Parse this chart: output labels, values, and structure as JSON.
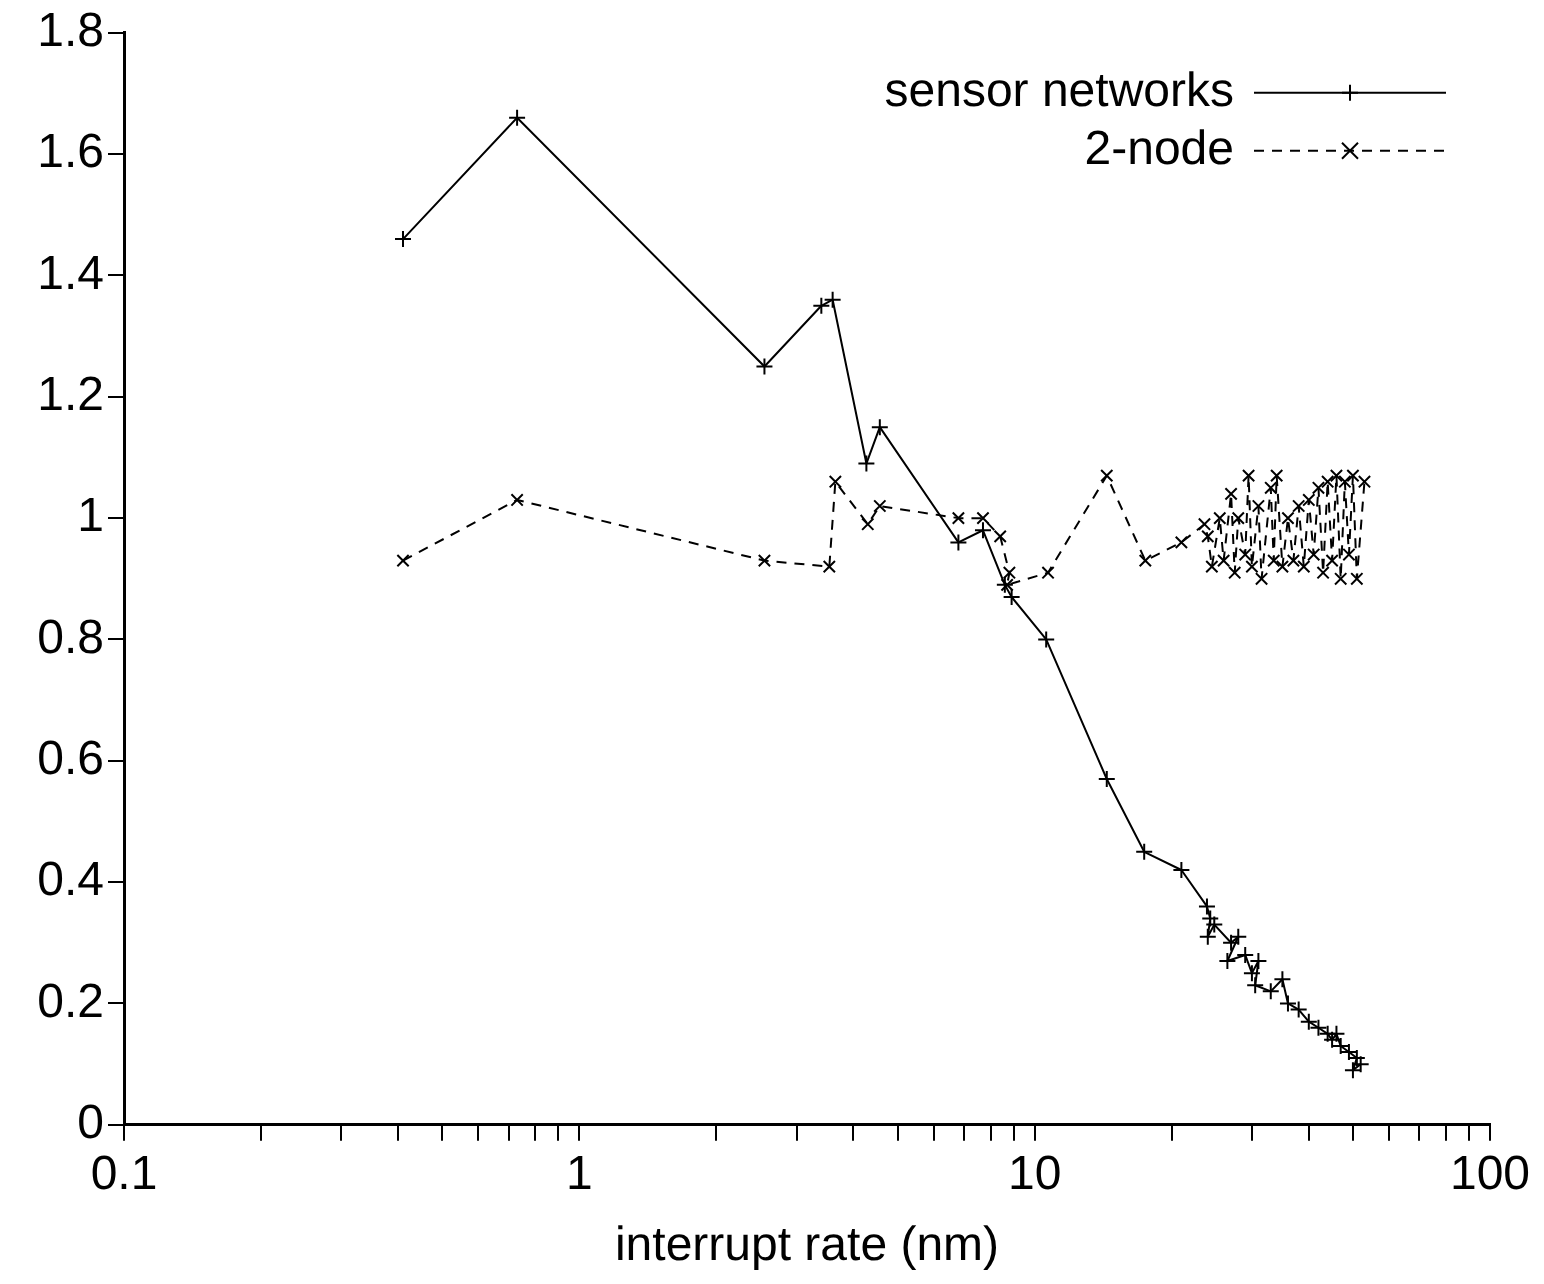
{
  "chart_data": {
    "type": "line",
    "xlabel": "interrupt rate (nm)",
    "log": "x",
    "grid": false,
    "legend": "top right",
    "xlim": [
      0.1,
      100
    ],
    "xticks": [
      0.1,
      {
        "value": 0.2,
        "label": null
      },
      {
        "value": 0.3,
        "label": null
      },
      {
        "value": 0.4,
        "label": null
      },
      {
        "value": 0.5,
        "label": null
      },
      {
        "value": 0.6,
        "label": null
      },
      {
        "value": 0.7,
        "label": null
      },
      {
        "value": 0.8,
        "label": null
      },
      {
        "value": 0.9,
        "label": null
      },
      1,
      {
        "value": 2,
        "label": null
      },
      {
        "value": 3,
        "label": null
      },
      {
        "value": 4,
        "label": null
      },
      {
        "value": 5,
        "label": null
      },
      {
        "value": 6,
        "label": null
      },
      {
        "value": 7,
        "label": null
      },
      {
        "value": 8,
        "label": null
      },
      {
        "value": 9,
        "label": null
      },
      10,
      {
        "value": 20,
        "label": null
      },
      {
        "value": 30,
        "label": null
      },
      {
        "value": 40,
        "label": null
      },
      {
        "value": 50,
        "label": null
      },
      {
        "value": 60,
        "label": null
      },
      {
        "value": 70,
        "label": null
      },
      {
        "value": 80,
        "label": null
      },
      {
        "value": 90,
        "label": null
      },
      100
    ],
    "ylim": [
      0,
      1.8
    ],
    "yticks": [
      0,
      0.2,
      0.4,
      0.6,
      0.8,
      1,
      1.2,
      1.4,
      1.6,
      1.8
    ],
    "series": [
      {
        "name": "sensor networks",
        "color": "#000000",
        "marker": "cross",
        "line_style": "solid",
        "x": [
          0.41,
          0.73,
          2.55,
          3.4,
          3.6,
          4.27,
          4.57,
          6.8,
          7.7,
          8.6,
          8.9,
          10.6,
          14.4,
          17.4,
          21,
          23.9,
          24.3,
          24.0,
          24.8,
          27,
          28,
          26.5,
          29,
          30,
          31,
          30.5,
          33,
          35,
          36,
          38,
          40,
          42,
          44,
          45,
          46,
          47,
          49,
          51,
          50,
          52
        ],
        "values": [
          1.46,
          1.66,
          1.25,
          1.35,
          1.36,
          1.09,
          1.15,
          0.96,
          0.98,
          0.89,
          0.87,
          0.8,
          0.57,
          0.45,
          0.42,
          0.36,
          0.34,
          0.31,
          0.33,
          0.3,
          0.31,
          0.27,
          0.28,
          0.25,
          0.27,
          0.23,
          0.22,
          0.24,
          0.2,
          0.19,
          0.17,
          0.16,
          0.15,
          0.14,
          0.15,
          0.13,
          0.12,
          0.11,
          0.09,
          0.1
        ]
      },
      {
        "name": "2-node",
        "color": "#000000",
        "marker": "x",
        "line_style": "dashed",
        "x": [
          0.41,
          0.73,
          2.55,
          3.54,
          3.65,
          4.3,
          4.57,
          6.8,
          7.7,
          8.4,
          8.8,
          8.7,
          10.7,
          14.4,
          17.5,
          21,
          23.6,
          24,
          24.5,
          25.5,
          26,
          27,
          27.5,
          28,
          29,
          29.5,
          30,
          31,
          31.5,
          33,
          33.5,
          34,
          35,
          36,
          37,
          38,
          39,
          40,
          41,
          42,
          43,
          44,
          45,
          46,
          47,
          48,
          49,
          50,
          51,
          53
        ],
        "values": [
          0.93,
          1.03,
          0.93,
          0.92,
          1.06,
          0.99,
          1.02,
          1.0,
          1.0,
          0.97,
          0.91,
          0.89,
          0.91,
          1.07,
          0.93,
          0.96,
          0.99,
          0.97,
          0.92,
          1.0,
          0.93,
          1.04,
          0.91,
          1.0,
          0.94,
          1.07,
          0.92,
          1.02,
          0.9,
          1.05,
          0.93,
          1.07,
          0.92,
          1.0,
          0.93,
          1.02,
          0.92,
          1.03,
          0.94,
          1.05,
          0.91,
          1.06,
          0.93,
          1.07,
          0.9,
          1.06,
          0.94,
          1.07,
          0.9,
          1.06
        ]
      }
    ]
  }
}
